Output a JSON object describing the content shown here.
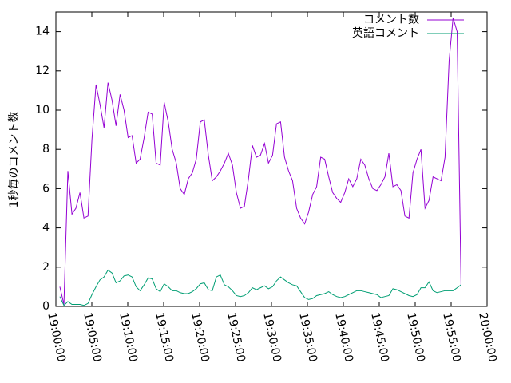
{
  "chart_data": {
    "type": "line",
    "ylabel": "1秒毎のコメント数",
    "x": [
      "19:00:33",
      "19:01:07",
      "19:01:40",
      "19:02:14",
      "19:02:47",
      "19:03:21",
      "19:03:54",
      "19:04:28",
      "19:05:01",
      "19:05:35",
      "19:06:08",
      "19:06:42",
      "19:07:15",
      "19:07:49",
      "19:08:22",
      "19:08:56",
      "19:09:29",
      "19:10:03",
      "19:10:36",
      "19:11:10",
      "19:11:43",
      "19:12:17",
      "19:12:50",
      "19:13:24",
      "19:13:57",
      "19:14:31",
      "19:15:04",
      "19:15:38",
      "19:16:11",
      "19:16:45",
      "19:17:18",
      "19:17:52",
      "19:18:25",
      "19:18:59",
      "19:19:32",
      "19:20:06",
      "19:20:39",
      "19:21:13",
      "19:21:46",
      "19:22:20",
      "19:22:53",
      "19:23:27",
      "19:24:00",
      "19:24:34",
      "19:25:07",
      "19:25:41",
      "19:26:14",
      "19:26:48",
      "19:27:21",
      "19:27:55",
      "19:28:28",
      "19:29:02",
      "19:29:35",
      "19:30:09",
      "19:30:42",
      "19:31:16",
      "19:31:49",
      "19:32:23",
      "19:32:56",
      "19:33:30",
      "19:34:03",
      "19:34:37",
      "19:35:10",
      "19:35:44",
      "19:36:17",
      "19:36:51",
      "19:37:24",
      "19:37:58",
      "19:38:31",
      "19:39:05",
      "19:39:38",
      "19:40:12",
      "19:40:45",
      "19:41:19",
      "19:41:52",
      "19:42:26",
      "19:42:59",
      "19:43:33",
      "19:44:06",
      "19:44:40",
      "19:45:13",
      "19:45:47",
      "19:46:20",
      "19:46:54",
      "19:47:27",
      "19:48:01",
      "19:48:34",
      "19:49:08",
      "19:49:41",
      "19:50:15",
      "19:50:48",
      "19:51:22",
      "19:51:55",
      "19:52:29",
      "19:53:02",
      "19:53:36",
      "19:54:09",
      "19:54:43",
      "19:55:16",
      "19:55:50",
      "19:56:23"
    ],
    "series": [
      {
        "name": "コメント数",
        "color": "#9400d3",
        "values": [
          1.0,
          0.1,
          6.9,
          4.7,
          5.0,
          5.8,
          4.5,
          4.6,
          8.5,
          11.3,
          10.3,
          9.1,
          11.4,
          10.5,
          9.2,
          10.8,
          10.0,
          8.6,
          8.7,
          7.3,
          7.5,
          8.6,
          9.9,
          9.8,
          7.3,
          7.2,
          10.4,
          9.4,
          8.0,
          7.3,
          6.0,
          5.7,
          6.5,
          6.8,
          7.5,
          9.4,
          9.5,
          7.7,
          6.4,
          6.6,
          6.9,
          7.3,
          7.8,
          7.2,
          5.8,
          5.0,
          5.1,
          6.5,
          8.2,
          7.6,
          7.7,
          8.3,
          7.3,
          7.7,
          9.3,
          9.4,
          7.6,
          6.9,
          6.4,
          5.0,
          4.5,
          4.2,
          4.8,
          5.7,
          6.1,
          7.6,
          7.5,
          6.6,
          5.8,
          5.5,
          5.3,
          5.8,
          6.5,
          6.1,
          6.5,
          7.5,
          7.2,
          6.5,
          6.0,
          5.9,
          6.2,
          6.6,
          7.8,
          6.1,
          6.2,
          5.9,
          4.6,
          4.5,
          6.8,
          7.5,
          8.0,
          5.0,
          5.4,
          6.6,
          6.5,
          6.4,
          7.6,
          12.5,
          14.7,
          14.0,
          1.0
        ]
      },
      {
        "name": "英語コメント",
        "color": "#009e73",
        "values": [
          0.5,
          0.05,
          0.25,
          0.1,
          0.1,
          0.1,
          0.05,
          0.15,
          0.6,
          1.0,
          1.35,
          1.5,
          1.85,
          1.7,
          1.2,
          1.3,
          1.55,
          1.6,
          1.5,
          1.0,
          0.8,
          1.1,
          1.45,
          1.4,
          0.9,
          0.75,
          1.15,
          1.0,
          0.8,
          0.8,
          0.7,
          0.65,
          0.65,
          0.75,
          0.9,
          1.15,
          1.2,
          0.85,
          0.8,
          1.5,
          1.6,
          1.1,
          1.0,
          0.8,
          0.55,
          0.5,
          0.55,
          0.7,
          0.95,
          0.85,
          0.95,
          1.05,
          0.9,
          1.0,
          1.3,
          1.5,
          1.35,
          1.2,
          1.1,
          1.05,
          0.75,
          0.45,
          0.35,
          0.4,
          0.55,
          0.6,
          0.65,
          0.75,
          0.6,
          0.5,
          0.45,
          0.5,
          0.6,
          0.7,
          0.8,
          0.8,
          0.75,
          0.7,
          0.65,
          0.6,
          0.45,
          0.5,
          0.55,
          0.9,
          0.85,
          0.75,
          0.65,
          0.55,
          0.5,
          0.6,
          0.95,
          0.95,
          1.25,
          0.8,
          0.7,
          0.75,
          0.8,
          0.8,
          0.8,
          0.95,
          1.1
        ]
      }
    ],
    "xlim": [
      "19:00:00",
      "20:00:00"
    ],
    "xticks": [
      "19:00:00",
      "19:05:00",
      "19:10:00",
      "19:15:00",
      "19:20:00",
      "19:25:00",
      "19:30:00",
      "19:35:00",
      "19:40:00",
      "19:45:00",
      "19:50:00",
      "19:55:00",
      "20:00:00"
    ],
    "ylim": [
      0,
      15
    ],
    "yticks": [
      0,
      2,
      4,
      6,
      8,
      10,
      12,
      14
    ],
    "legend": "top-right"
  }
}
